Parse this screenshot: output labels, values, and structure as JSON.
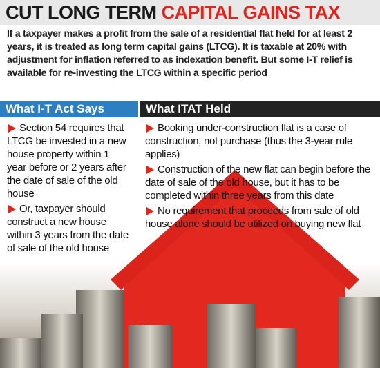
{
  "header": {
    "title_black": "CUT LONG TERM",
    "title_red": "CAPITAL GAINS TAX"
  },
  "intro": "If a taxpayer makes a profit from the sale of a residential flat held for at least 2 years, it is treated as long term capital gains (LTCG). It is taxable at 20% with adjustment for inflation referred to as indexation benefit. But some I-T relief is available for re-investing the LTCG within a specific period",
  "columns": [
    {
      "heading": "What I-T Act Says",
      "points": [
        "Section 54 requires that LTCG be invested in a new house property within 1 year before or 2 years after the date of sale of the old house",
        "Or, taxpayer should construct a new house within 3 years from the date of sale of the old house"
      ]
    },
    {
      "heading": "What ITAT Held",
      "points": [
        "Booking under-construction flat is a case of construction, not purchase (thus the 3-year rule applies)",
        "Construction of the new flat can begin before the date of sale of the old house, but it has to be completed within three years from this date",
        "No requirement that proceeds from sale of old house alone should be utilized on buying new flat"
      ]
    }
  ]
}
